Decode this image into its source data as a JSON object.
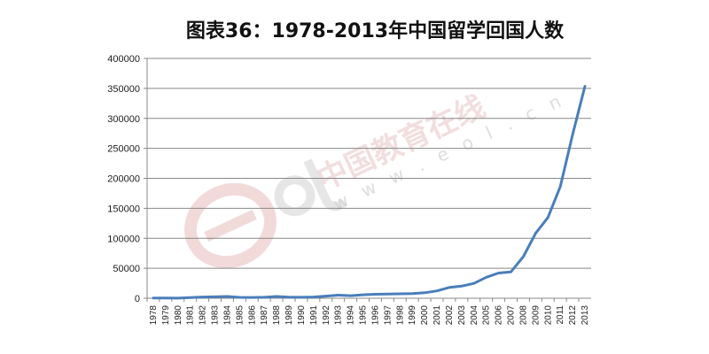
{
  "chart_data": {
    "type": "line",
    "title": "图表36：1978-2013年中国留学回国人数",
    "xlabel": "",
    "ylabel": "",
    "ylim": [
      0,
      400000
    ],
    "yticks": [
      0,
      50000,
      100000,
      150000,
      200000,
      250000,
      300000,
      350000,
      400000
    ],
    "grid": true,
    "x": [
      "1978",
      "1979",
      "1980",
      "1981",
      "1982",
      "1983",
      "1984",
      "1985",
      "1986",
      "1987",
      "1988",
      "1989",
      "1990",
      "1991",
      "1992",
      "1993",
      "1994",
      "1995",
      "1996",
      "1997",
      "1998",
      "1999",
      "2000",
      "2001",
      "2002",
      "2003",
      "2004",
      "2005",
      "2006",
      "2007",
      "2008",
      "2009",
      "2010",
      "2011",
      "2012",
      "2013"
    ],
    "series": [
      {
        "color": "#4a7ebb",
        "values": [
          248,
          231,
          162,
          1143,
          2116,
          2303,
          2920,
          1424,
          1388,
          1605,
          3000,
          1753,
          1593,
          2069,
          3611,
          5128,
          4230,
          5750,
          6570,
          7130,
          7379,
          7748,
          9121,
          12243,
          17945,
          20152,
          24726,
          34987,
          42000,
          44000,
          69300,
          108300,
          134800,
          186200,
          272900,
          353500
        ]
      }
    ]
  },
  "watermark": {
    "chinese": "中国教育在线",
    "url": "w w w . e o l . c n",
    "logo_text": "eol",
    "colors": {
      "logo": "#e2b2b2",
      "text": "#d8d8d8"
    }
  }
}
